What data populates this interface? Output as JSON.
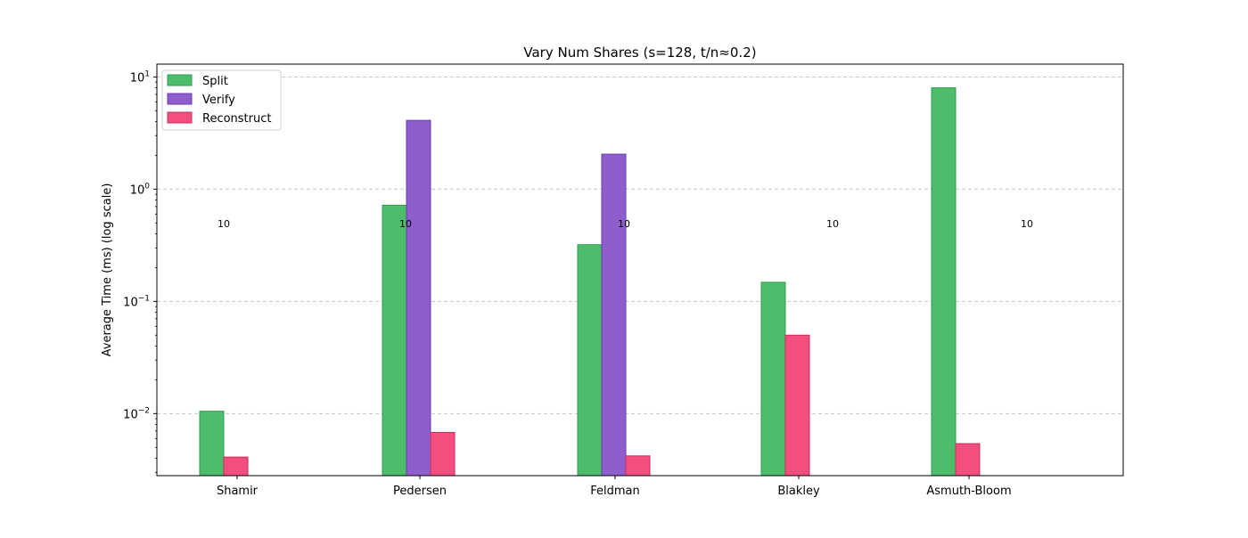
{
  "chart_data": {
    "type": "bar",
    "title": "Vary Num Shares (s=128, t/n≈0.2)",
    "xlabel": "",
    "ylabel": "Average Time (ms) (log scale)",
    "yscale": "log",
    "ylim": [
      0.0028,
      13
    ],
    "grid": "y-dashed",
    "legend_position": "top-left",
    "categories": [
      "Shamir",
      "Pedersen",
      "Feldman",
      "Blakley",
      "Asmuth-Bloom"
    ],
    "group_center_x_labels": [
      "Shamir",
      "Pedersen",
      "Feldman",
      "Blakley",
      "Asmuth-Bloom"
    ],
    "series": [
      {
        "name": "Split",
        "color": "#4dbd6b",
        "edge": "#2f9e50",
        "values": [
          0.0105,
          0.72,
          0.32,
          0.148,
          8.0
        ]
      },
      {
        "name": "Verify",
        "color": "#8e5fcc",
        "edge": "#6a3bb0",
        "values": [
          null,
          4.1,
          2.05,
          null,
          null
        ]
      },
      {
        "name": "Reconstruct",
        "color": "#f24e7e",
        "edge": "#c92c5c",
        "values": [
          0.0041,
          0.0068,
          0.0042,
          0.05,
          0.0054
        ]
      }
    ],
    "annotations": [
      "10",
      "10",
      "10",
      "10",
      "10"
    ],
    "yticks": [
      {
        "value": 0.01,
        "base": "10",
        "exp": "−2"
      },
      {
        "value": 0.1,
        "base": "10",
        "exp": "−1"
      },
      {
        "value": 1,
        "base": "10",
        "exp": "0"
      },
      {
        "value": 10,
        "base": "10",
        "exp": "1"
      }
    ]
  }
}
